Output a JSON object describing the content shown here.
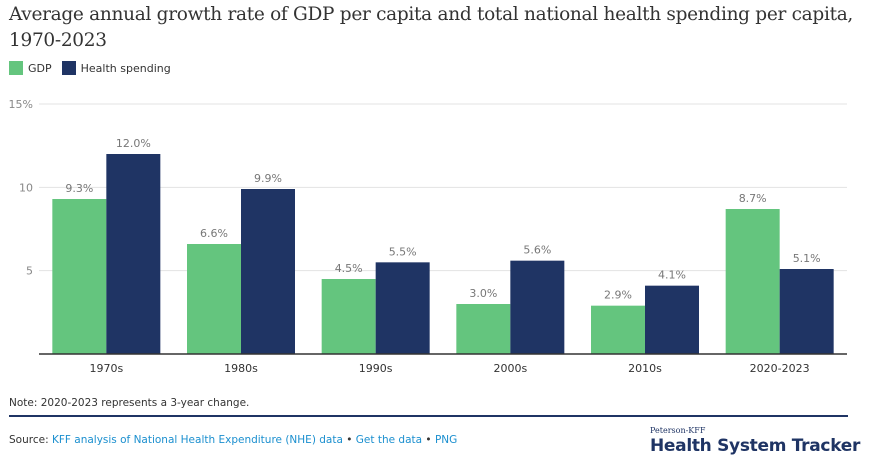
{
  "header": {
    "title": "Average annual growth rate of GDP per capita and total national health spending per capita, 1970-2023"
  },
  "legend": [
    {
      "label": "GDP",
      "color": "#64c57e"
    },
    {
      "label": "Health spending",
      "color": "#1f3464"
    }
  ],
  "chart_data": {
    "type": "bar",
    "title": "Average annual growth rate of GDP per capita and total national health spending per capita, 1970-2023",
    "xlabel": "",
    "ylabel": "",
    "categories": [
      "1970s",
      "1980s",
      "1990s",
      "2000s",
      "2010s",
      "2020-2023"
    ],
    "series": [
      {
        "name": "GDP",
        "color": "#64c57e",
        "values": [
          9.3,
          6.6,
          4.5,
          3.0,
          2.9,
          8.7
        ],
        "labels": [
          "9.3%",
          "6.6%",
          "4.5%",
          "3.0%",
          "2.9%",
          "8.7%"
        ]
      },
      {
        "name": "Health spending",
        "color": "#1f3464",
        "values": [
          12.0,
          9.9,
          5.5,
          5.6,
          4.1,
          5.1
        ],
        "labels": [
          "12.0%",
          "9.9%",
          "5.5%",
          "5.6%",
          "4.1%",
          "5.1%"
        ]
      }
    ],
    "yticks": [
      5,
      10,
      15
    ],
    "ytick_labels": [
      "5",
      "10",
      "15%"
    ],
    "ylim": [
      0,
      15
    ],
    "grid": true,
    "legend_position": "top-left"
  },
  "footer": {
    "note": "Note: 2020-2023 represents a 3-year change.",
    "source_label": "Source: ",
    "source_link": "KFF analysis of National Health Expenditure (NHE) data",
    "separator": " • ",
    "get_data_link": "Get the data",
    "png_link": "PNG",
    "brand_small": "Peterson-KFF",
    "brand_big": "Health System Tracker"
  }
}
